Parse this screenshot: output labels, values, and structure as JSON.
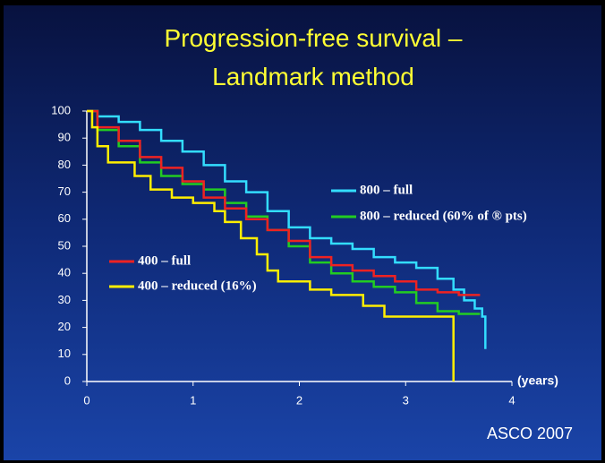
{
  "chart_data": {
    "type": "step",
    "title": "Progression-free survival –",
    "subtitle": "Landmark method",
    "x_label": "(years)",
    "source": "ASCO 2007",
    "xlim": [
      0,
      4
    ],
    "xticks": [
      0,
      1,
      2,
      3,
      4
    ],
    "ylim": [
      0,
      100
    ],
    "yticks": [
      0,
      10,
      20,
      30,
      40,
      50,
      60,
      70,
      80,
      90,
      100
    ],
    "series": [
      {
        "name": "800 – full",
        "color": "#33ddff",
        "x": [
          0,
          0.1,
          0.3,
          0.5,
          0.7,
          0.9,
          1.1,
          1.3,
          1.5,
          1.7,
          1.9,
          2.1,
          2.3,
          2.5,
          2.7,
          2.9,
          3.1,
          3.3,
          3.45,
          3.55,
          3.65,
          3.72,
          3.75
        ],
        "values": [
          100,
          98,
          96,
          93,
          89,
          85,
          80,
          74,
          70,
          63,
          57,
          53,
          51,
          49,
          46,
          44,
          42,
          38,
          34,
          30,
          27,
          24,
          12
        ]
      },
      {
        "name": "800 – reduced (60% of ® pts)",
        "color": "#22cc22",
        "x": [
          0,
          0.1,
          0.3,
          0.5,
          0.7,
          0.9,
          1.1,
          1.3,
          1.5,
          1.7,
          1.9,
          2.1,
          2.3,
          2.5,
          2.7,
          2.9,
          3.1,
          3.3,
          3.5,
          3.7
        ],
        "values": [
          100,
          93,
          87,
          81,
          76,
          73,
          71,
          66,
          61,
          56,
          50,
          44,
          40,
          37,
          35,
          33,
          29,
          26,
          25,
          25
        ]
      },
      {
        "name": "400 – full",
        "color": "#ee2222",
        "x": [
          0,
          0.1,
          0.3,
          0.5,
          0.7,
          0.9,
          1.1,
          1.3,
          1.5,
          1.7,
          1.9,
          2.1,
          2.3,
          2.5,
          2.7,
          2.9,
          3.1,
          3.3,
          3.5,
          3.7
        ],
        "values": [
          100,
          94,
          89,
          83,
          79,
          74,
          68,
          64,
          60,
          56,
          52,
          46,
          43,
          41,
          39,
          37,
          34,
          33,
          32,
          32
        ]
      },
      {
        "name": "400 – reduced (16%)",
        "color": "#ffee00",
        "x": [
          0,
          0.05,
          0.1,
          0.2,
          0.45,
          0.6,
          0.8,
          1.0,
          1.2,
          1.3,
          1.45,
          1.6,
          1.7,
          1.8,
          2.1,
          2.3,
          2.6,
          2.8,
          3.45
        ],
        "values": [
          100,
          94,
          87,
          81,
          76,
          71,
          68,
          66,
          63,
          59,
          53,
          47,
          41,
          37,
          34,
          32,
          28,
          24,
          0
        ]
      }
    ]
  }
}
